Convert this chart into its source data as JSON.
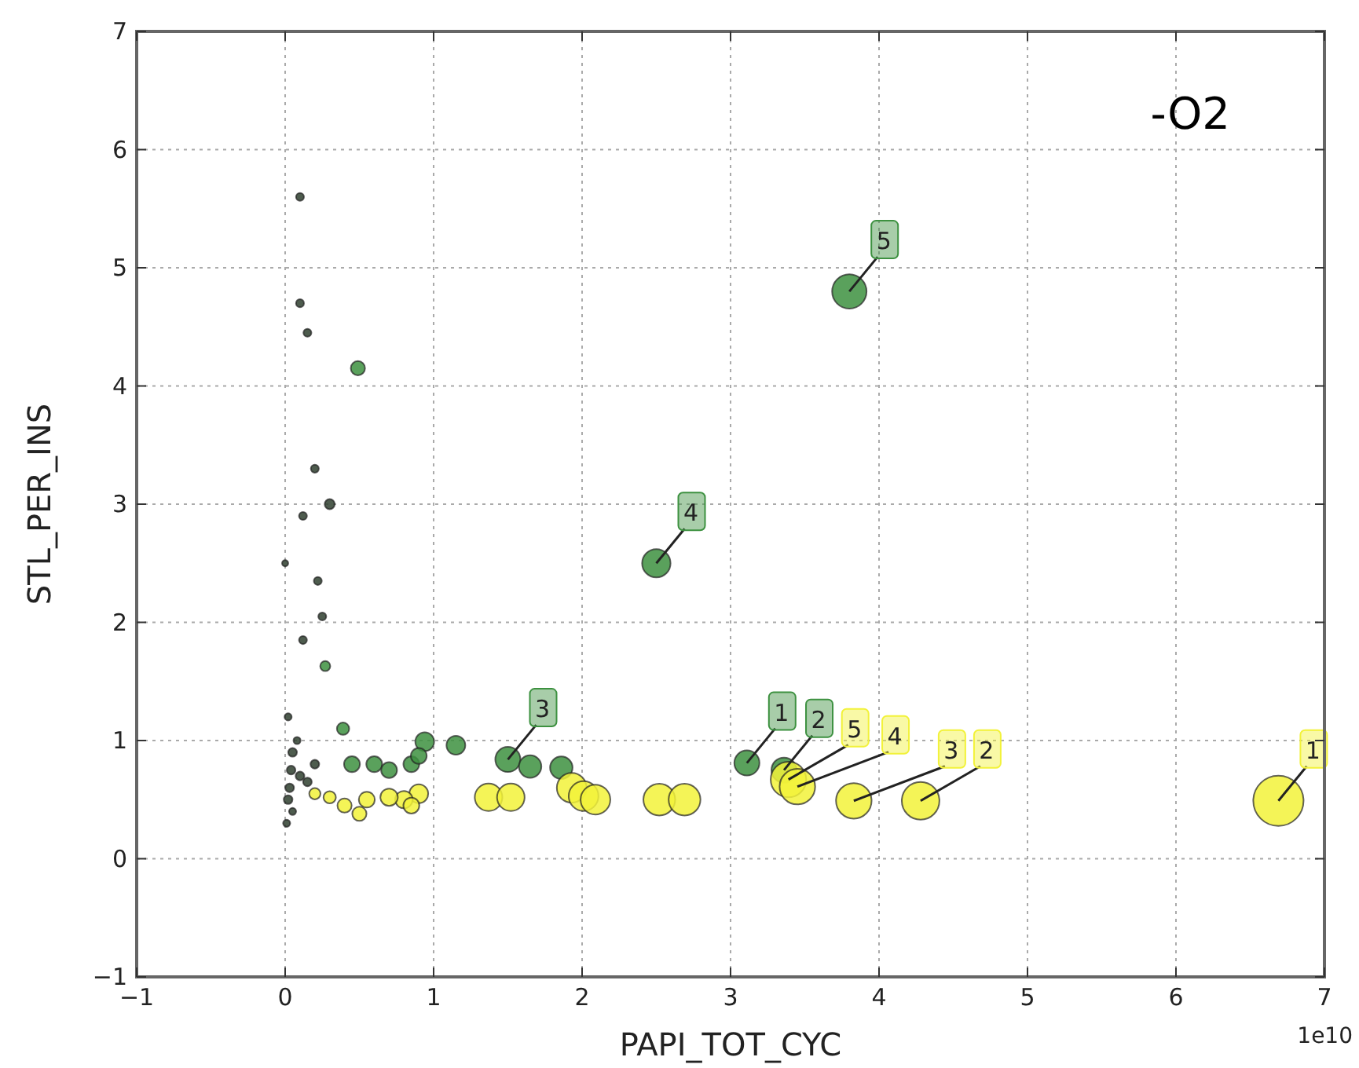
{
  "chart_data": {
    "type": "bubble",
    "xlabel": "PAPI_TOT_CYC",
    "ylabel": "STL_PER_INS",
    "xlim": [
      -1,
      7
    ],
    "ylim": [
      -1,
      7
    ],
    "xticks": [
      -1,
      0,
      1,
      2,
      3,
      4,
      5,
      6,
      7
    ],
    "yticks": [
      -1,
      0,
      1,
      2,
      3,
      4,
      5,
      6,
      7
    ],
    "grid": true,
    "marker": "circle",
    "series": [
      {
        "color": "#2f3f2f",
        "x": [
          0.1,
          0.1,
          0.15,
          0.2,
          0.3,
          0.12,
          0.22,
          0.25,
          0.12,
          0.02,
          0.05,
          0.1,
          0.03,
          0.02,
          0.05,
          0.01,
          0.15,
          0.2,
          0.08,
          0.0,
          0.04
        ],
        "values": [
          5.6,
          4.7,
          4.45,
          3.3,
          3.0,
          2.9,
          2.35,
          2.05,
          1.85,
          1.2,
          0.9,
          0.7,
          0.6,
          0.5,
          0.4,
          0.3,
          0.65,
          0.8,
          1.0,
          2.5,
          0.75
        ],
        "sizes": [
          0.025,
          0.025,
          0.025,
          0.025,
          0.04,
          0.025,
          0.025,
          0.025,
          0.025,
          0.02,
          0.03,
          0.03,
          0.03,
          0.03,
          0.02,
          0.02,
          0.03,
          0.03,
          0.02,
          0.015,
          0.03
        ]
      },
      {
        "color": "#3d9140",
        "x": [
          3.8,
          2.5,
          1.5,
          1.65,
          3.11,
          3.36,
          1.86,
          1.15,
          0.94,
          0.49,
          0.39,
          0.27,
          0.45,
          0.6,
          0.7,
          0.85,
          0.9
        ],
        "values": [
          4.8,
          2.5,
          0.84,
          0.78,
          0.81,
          0.75,
          0.77,
          0.96,
          0.99,
          4.15,
          1.1,
          1.63,
          0.8,
          0.8,
          0.75,
          0.8,
          0.87
        ],
        "sizes": [
          0.47,
          0.32,
          0.25,
          0.2,
          0.25,
          0.25,
          0.2,
          0.14,
          0.14,
          0.08,
          0.06,
          0.04,
          0.1,
          0.1,
          0.1,
          0.1,
          0.1
        ]
      },
      {
        "color": "#f2f23a",
        "x": [
          6.69,
          4.28,
          3.83,
          3.39,
          3.45,
          2.52,
          2.69,
          1.93,
          2.01,
          2.09,
          1.37,
          1.52,
          0.9,
          0.8,
          0.7,
          0.55,
          0.4,
          0.5,
          0.3,
          0.2,
          0.85
        ],
        "values": [
          0.49,
          0.49,
          0.49,
          0.67,
          0.61,
          0.5,
          0.5,
          0.6,
          0.53,
          0.5,
          0.52,
          0.52,
          0.55,
          0.5,
          0.52,
          0.5,
          0.45,
          0.38,
          0.52,
          0.55,
          0.45
        ],
        "sizes": [
          1,
          0.56,
          0.5,
          0.5,
          0.5,
          0.4,
          0.4,
          0.35,
          0.35,
          0.35,
          0.3,
          0.3,
          0.14,
          0.12,
          0.12,
          0.1,
          0.08,
          0.08,
          0.06,
          0.05,
          0.1
        ]
      }
    ],
    "annotations": [
      "-O2",
      "1e10",
      {
        "text": "5",
        "x": 3.8,
        "y": 4.8
      },
      {
        "text": "4",
        "x": 2.5,
        "y": 2.5
      },
      {
        "text": "3",
        "x": 1.5,
        "y": 0.84
      },
      {
        "text": "1",
        "x": 3.11,
        "y": 0.81
      },
      {
        "text": "2",
        "x": 3.36,
        "y": 0.75
      },
      {
        "text": "5",
        "x": 3.39,
        "y": 0.67
      },
      {
        "text": "4",
        "x": 3.45,
        "y": 0.61
      },
      {
        "text": "3",
        "x": 3.83,
        "y": 0.49
      },
      {
        "text": "2",
        "x": 4.28,
        "y": 0.49
      },
      {
        "text": "1",
        "x": 6.69,
        "y": 0.49
      }
    ]
  }
}
